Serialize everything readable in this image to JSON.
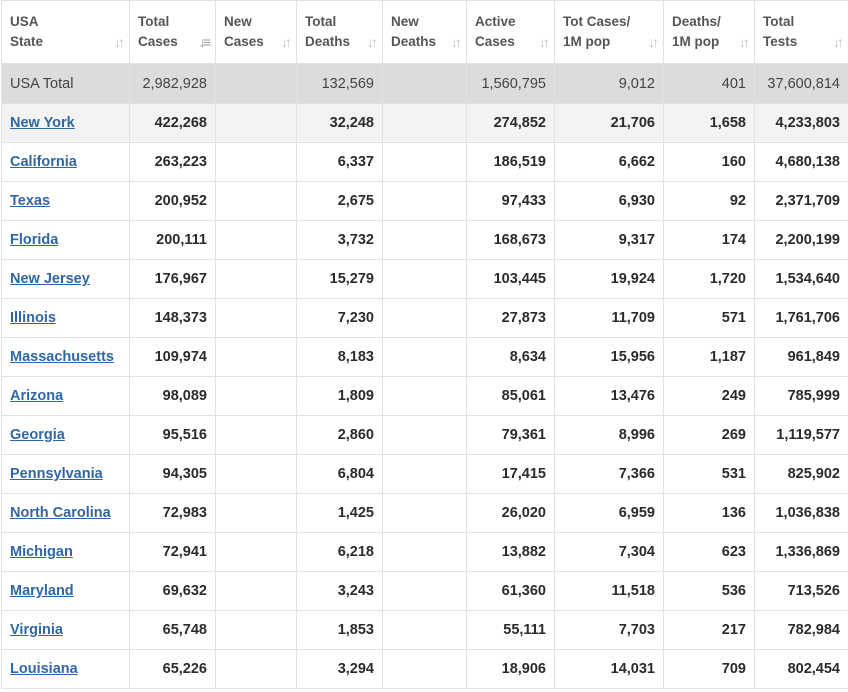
{
  "columns": [
    {
      "label": "USA\nState",
      "sort_icon": "sort-both-icon"
    },
    {
      "label": "Total\nCases",
      "sort_icon": "sort-desc-icon"
    },
    {
      "label": "New\nCases",
      "sort_icon": "sort-both-icon"
    },
    {
      "label": "Total\nDeaths",
      "sort_icon": "sort-both-icon"
    },
    {
      "label": "New\nDeaths",
      "sort_icon": "sort-both-icon"
    },
    {
      "label": "Active\nCases",
      "sort_icon": "sort-both-icon"
    },
    {
      "label": "Tot Cases/\n1M pop",
      "sort_icon": "sort-both-icon"
    },
    {
      "label": "Deaths/\n1M pop",
      "sort_icon": "sort-both-icon"
    },
    {
      "label": "Total\nTests",
      "sort_icon": "sort-both-icon"
    }
  ],
  "total": [
    "USA Total",
    "2,982,928",
    "",
    "132,569",
    "",
    "1,560,795",
    "9,012",
    "401",
    "37,600,814"
  ],
  "rows": [
    [
      "New York",
      "422,268",
      "",
      "32,248",
      "",
      "274,852",
      "21,706",
      "1,658",
      "4,233,803"
    ],
    [
      "California",
      "263,223",
      "",
      "6,337",
      "",
      "186,519",
      "6,662",
      "160",
      "4,680,138"
    ],
    [
      "Texas",
      "200,952",
      "",
      "2,675",
      "",
      "97,433",
      "6,930",
      "92",
      "2,371,709"
    ],
    [
      "Florida",
      "200,111",
      "",
      "3,732",
      "",
      "168,673",
      "9,317",
      "174",
      "2,200,199"
    ],
    [
      "New Jersey",
      "176,967",
      "",
      "15,279",
      "",
      "103,445",
      "19,924",
      "1,720",
      "1,534,640"
    ],
    [
      "Illinois",
      "148,373",
      "",
      "7,230",
      "",
      "27,873",
      "11,709",
      "571",
      "1,761,706"
    ],
    [
      "Massachusetts",
      "109,974",
      "",
      "8,183",
      "",
      "8,634",
      "15,956",
      "1,187",
      "961,849"
    ],
    [
      "Arizona",
      "98,089",
      "",
      "1,809",
      "",
      "85,061",
      "13,476",
      "249",
      "785,999"
    ],
    [
      "Georgia",
      "95,516",
      "",
      "2,860",
      "",
      "79,361",
      "8,996",
      "269",
      "1,119,577"
    ],
    [
      "Pennsylvania",
      "94,305",
      "",
      "6,804",
      "",
      "17,415",
      "7,366",
      "531",
      "825,902"
    ],
    [
      "North Carolina",
      "72,983",
      "",
      "1,425",
      "",
      "26,020",
      "6,959",
      "136",
      "1,036,838"
    ],
    [
      "Michigan",
      "72,941",
      "",
      "6,218",
      "",
      "13,882",
      "7,304",
      "623",
      "1,336,869"
    ],
    [
      "Maryland",
      "69,632",
      "",
      "3,243",
      "",
      "61,360",
      "11,518",
      "536",
      "713,526"
    ],
    [
      "Virginia",
      "65,748",
      "",
      "1,853",
      "",
      "55,111",
      "7,703",
      "217",
      "782,984"
    ],
    [
      "Louisiana",
      "65,226",
      "",
      "3,294",
      "",
      "18,906",
      "14,031",
      "709",
      "802,454"
    ]
  ],
  "colors": {
    "link": "#2f67a6",
    "total_row_bg": "#dcdcdc",
    "highlight_row_bg": "#f3f3f3",
    "border": "#e2e2e2"
  }
}
